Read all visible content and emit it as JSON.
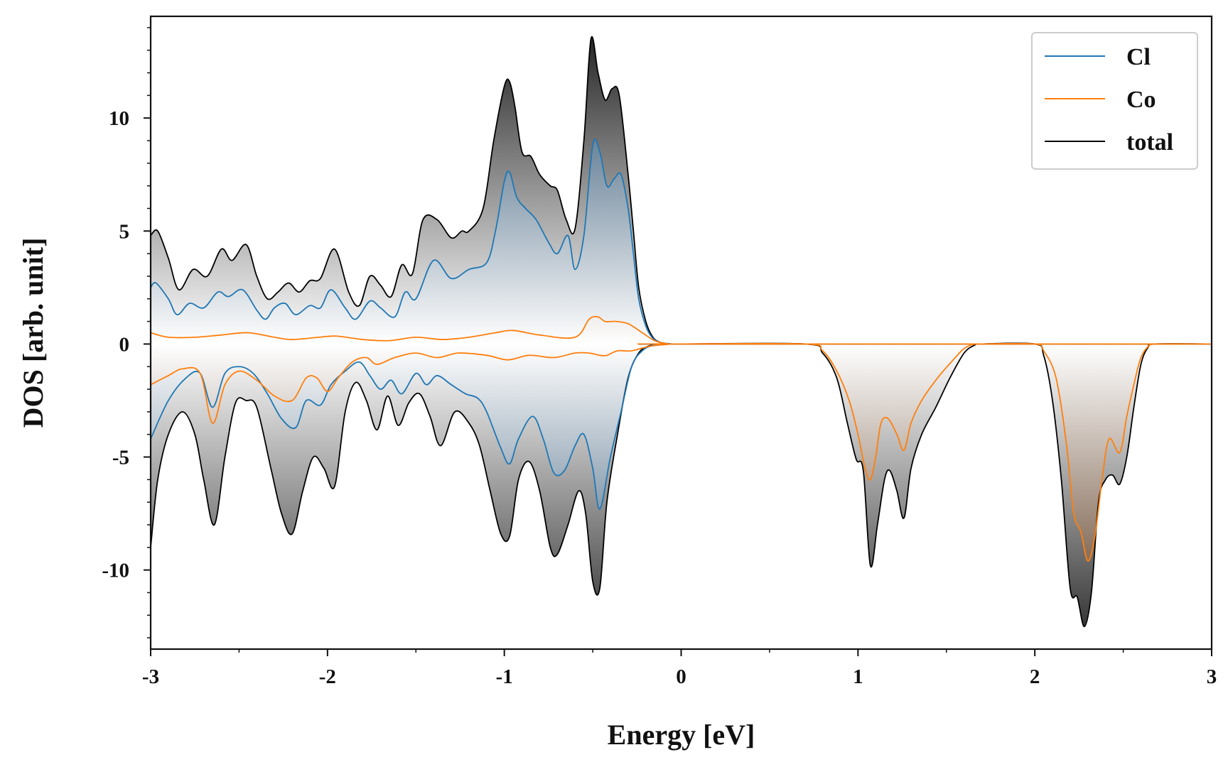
{
  "chart_data": {
    "type": "area",
    "xlabel": "Energy [eV]",
    "ylabel": "DOS [arb. unit]",
    "xlim": [
      -3,
      3
    ],
    "ylim": [
      -13.5,
      14.5
    ],
    "xticks": [
      -3,
      -2,
      -1,
      0,
      1,
      2,
      3
    ],
    "xtick_labels": [
      "-3",
      "-2",
      "-1",
      "0",
      "1",
      "2",
      "3"
    ],
    "yticks": [
      -10,
      -5,
      0,
      5,
      10
    ],
    "ytick_labels": [
      "-10",
      "-5",
      "0",
      "5",
      "10"
    ],
    "grid": false,
    "legend_position": "top-right",
    "colors": {
      "Cl": "#1f77b4",
      "Co": "#ff7f0e",
      "total": "#000000"
    },
    "series": [
      {
        "name": "Cl",
        "component": "spin-up",
        "x": [
          -3.0,
          -2.97,
          -2.9,
          -2.85,
          -2.78,
          -2.7,
          -2.62,
          -2.56,
          -2.48,
          -2.4,
          -2.35,
          -2.3,
          -2.24,
          -2.18,
          -2.1,
          -2.04,
          -1.98,
          -1.9,
          -1.84,
          -1.76,
          -1.7,
          -1.62,
          -1.56,
          -1.5,
          -1.4,
          -1.3,
          -1.2,
          -1.1,
          -1.05,
          -1.0,
          -0.97,
          -0.93,
          -0.88,
          -0.82,
          -0.75,
          -0.7,
          -0.64,
          -0.6,
          -0.55,
          -0.5,
          -0.46,
          -0.42,
          -0.38,
          -0.34,
          -0.3,
          -0.27,
          -0.24,
          -0.2,
          -0.16,
          -0.12,
          -0.08,
          -0.05,
          0.0,
          3.0
        ],
        "y": [
          2.5,
          2.7,
          2.0,
          1.3,
          1.8,
          1.6,
          2.3,
          2.1,
          2.4,
          1.5,
          1.1,
          1.6,
          1.8,
          1.3,
          1.7,
          1.6,
          2.4,
          1.6,
          1.1,
          1.9,
          1.6,
          1.2,
          2.3,
          2.0,
          3.7,
          2.9,
          3.3,
          3.6,
          5.0,
          7.2,
          7.6,
          6.5,
          6.0,
          5.5,
          4.5,
          4.0,
          4.8,
          3.3,
          4.8,
          8.8,
          8.5,
          7.0,
          7.3,
          7.5,
          6.0,
          4.0,
          2.0,
          0.8,
          0.25,
          0.08,
          0.02,
          0.0,
          0.0,
          0.0
        ]
      },
      {
        "name": "Cl",
        "component": "spin-down",
        "x": [
          -3.0,
          -2.9,
          -2.8,
          -2.72,
          -2.65,
          -2.58,
          -2.5,
          -2.42,
          -2.34,
          -2.26,
          -2.18,
          -2.12,
          -2.04,
          -1.98,
          -1.9,
          -1.82,
          -1.76,
          -1.7,
          -1.64,
          -1.58,
          -1.5,
          -1.44,
          -1.38,
          -1.3,
          -1.22,
          -1.15,
          -1.1,
          -1.02,
          -0.97,
          -0.92,
          -0.84,
          -0.78,
          -0.72,
          -0.66,
          -0.6,
          -0.55,
          -0.5,
          -0.46,
          -0.4,
          -0.34,
          -0.28,
          -0.22,
          -0.16,
          -0.1,
          -0.05,
          0.0,
          3.0
        ],
        "y": [
          -4.2,
          -2.5,
          -1.5,
          -1.3,
          -2.8,
          -1.3,
          -1.0,
          -1.3,
          -2.2,
          -3.3,
          -3.7,
          -2.5,
          -2.7,
          -1.8,
          -1.2,
          -0.8,
          -1.4,
          -2.0,
          -1.6,
          -2.2,
          -1.3,
          -1.8,
          -1.4,
          -1.8,
          -2.2,
          -2.4,
          -3.0,
          -4.6,
          -5.3,
          -4.2,
          -3.2,
          -4.2,
          -5.7,
          -5.6,
          -4.5,
          -4.0,
          -5.5,
          -7.3,
          -5.0,
          -3.0,
          -1.0,
          -0.3,
          -0.06,
          -0.01,
          0.0,
          0.0,
          0.0
        ]
      },
      {
        "name": "Co",
        "component": "spin-up",
        "x": [
          -3.0,
          -2.9,
          -2.75,
          -2.6,
          -2.45,
          -2.3,
          -2.2,
          -2.05,
          -1.95,
          -1.8,
          -1.65,
          -1.5,
          -1.35,
          -1.2,
          -1.05,
          -0.95,
          -0.8,
          -0.6,
          -0.52,
          -0.47,
          -0.43,
          -0.37,
          -0.3,
          -0.22,
          -0.15,
          -0.08,
          0.0,
          3.0
        ],
        "y": [
          0.5,
          0.3,
          0.3,
          0.4,
          0.5,
          0.3,
          0.2,
          0.3,
          0.35,
          0.2,
          0.15,
          0.3,
          0.2,
          0.3,
          0.5,
          0.6,
          0.4,
          0.3,
          1.1,
          1.2,
          1.0,
          1.0,
          0.9,
          0.5,
          0.15,
          0.02,
          0.0,
          0.0
        ]
      },
      {
        "name": "Co",
        "component": "spin-down",
        "x": [
          -3.0,
          -2.9,
          -2.82,
          -2.72,
          -2.65,
          -2.58,
          -2.5,
          -2.4,
          -2.3,
          -2.2,
          -2.12,
          -2.06,
          -2.0,
          -1.94,
          -1.86,
          -1.78,
          -1.72,
          -1.62,
          -1.5,
          -1.38,
          -1.26,
          -1.1,
          -0.98,
          -0.86,
          -0.72,
          -0.6,
          -0.52,
          -0.46,
          -0.42,
          -0.36,
          -0.28,
          -0.18,
          -0.08,
          0.0,
          0.7,
          0.8,
          0.88,
          0.95,
          1.0,
          1.04,
          1.07,
          1.1,
          1.13,
          1.17,
          1.22,
          1.26,
          1.3,
          1.36,
          1.45,
          1.55,
          1.6,
          1.65,
          1.7,
          2.0,
          2.05,
          2.12,
          2.18,
          2.22,
          2.26,
          2.3,
          2.34,
          2.38,
          2.42,
          2.48,
          2.52,
          2.56,
          2.6,
          2.65,
          2.7,
          3.0
        ],
        "y": [
          -1.8,
          -1.4,
          -1.1,
          -1.3,
          -3.5,
          -1.8,
          -1.2,
          -1.6,
          -2.3,
          -2.5,
          -1.5,
          -1.5,
          -2.1,
          -1.5,
          -0.8,
          -0.6,
          -0.9,
          -0.6,
          -0.4,
          -0.6,
          -0.4,
          -0.5,
          -0.7,
          -0.5,
          -0.6,
          -0.4,
          -0.4,
          -0.5,
          -0.5,
          -0.3,
          -0.3,
          -0.1,
          -0.02,
          0.0,
          0.0,
          -0.3,
          -1.2,
          -2.5,
          -4.0,
          -5.5,
          -6.0,
          -5.0,
          -3.5,
          -3.3,
          -4.0,
          -4.7,
          -3.5,
          -2.5,
          -1.5,
          -0.6,
          -0.2,
          -0.02,
          0.0,
          0.0,
          -0.3,
          -1.5,
          -4.5,
          -7.5,
          -8.3,
          -9.6,
          -8.5,
          -6.0,
          -4.2,
          -4.8,
          -3.2,
          -1.8,
          -0.6,
          -0.05,
          0.0,
          0.0
        ]
      },
      {
        "name": "total",
        "component": "spin-up",
        "x": [
          -3.0,
          -2.96,
          -2.9,
          -2.84,
          -2.76,
          -2.68,
          -2.6,
          -2.54,
          -2.46,
          -2.4,
          -2.34,
          -2.28,
          -2.22,
          -2.16,
          -2.1,
          -2.04,
          -1.96,
          -1.88,
          -1.82,
          -1.76,
          -1.7,
          -1.64,
          -1.58,
          -1.52,
          -1.46,
          -1.38,
          -1.3,
          -1.24,
          -1.2,
          -1.12,
          -1.06,
          -1.0,
          -0.97,
          -0.94,
          -0.9,
          -0.85,
          -0.8,
          -0.74,
          -0.7,
          -0.65,
          -0.6,
          -0.55,
          -0.51,
          -0.47,
          -0.43,
          -0.39,
          -0.35,
          -0.3,
          -0.27,
          -0.24,
          -0.2,
          -0.16,
          -0.12,
          -0.08,
          -0.05,
          0.0,
          3.0
        ],
        "y": [
          4.8,
          5.0,
          3.8,
          2.4,
          3.3,
          3.0,
          4.2,
          3.7,
          4.4,
          3.0,
          2.0,
          2.3,
          2.7,
          2.3,
          2.8,
          2.9,
          4.2,
          2.3,
          1.7,
          3.0,
          2.6,
          2.1,
          3.5,
          3.1,
          5.5,
          5.5,
          4.7,
          5.0,
          5.0,
          6.0,
          9.0,
          11.4,
          11.6,
          10.5,
          8.5,
          8.3,
          7.5,
          7.0,
          6.8,
          5.5,
          5.1,
          9.0,
          13.5,
          12.0,
          10.8,
          11.3,
          11.0,
          7.5,
          5.0,
          2.5,
          1.0,
          0.3,
          0.08,
          0.02,
          0.0,
          0.0,
          0.0
        ]
      },
      {
        "name": "total",
        "component": "spin-down",
        "x": [
          -3.0,
          -2.96,
          -2.9,
          -2.82,
          -2.75,
          -2.7,
          -2.64,
          -2.58,
          -2.52,
          -2.46,
          -2.4,
          -2.32,
          -2.26,
          -2.2,
          -2.14,
          -2.08,
          -2.02,
          -1.96,
          -1.9,
          -1.84,
          -1.78,
          -1.72,
          -1.66,
          -1.6,
          -1.54,
          -1.48,
          -1.42,
          -1.36,
          -1.28,
          -1.2,
          -1.14,
          -1.08,
          -1.02,
          -0.97,
          -0.92,
          -0.86,
          -0.8,
          -0.74,
          -0.7,
          -0.64,
          -0.58,
          -0.54,
          -0.5,
          -0.46,
          -0.42,
          -0.36,
          -0.3,
          -0.24,
          -0.18,
          -0.12,
          -0.06,
          0.0,
          0.7,
          0.8,
          0.88,
          0.94,
          0.99,
          1.03,
          1.07,
          1.11,
          1.15,
          1.18,
          1.22,
          1.26,
          1.3,
          1.36,
          1.44,
          1.52,
          1.6,
          1.66,
          1.7,
          2.0,
          2.05,
          2.1,
          2.15,
          2.2,
          2.24,
          2.28,
          2.32,
          2.36,
          2.4,
          2.44,
          2.48,
          2.52,
          2.56,
          2.6,
          2.64,
          2.68,
          3.0
        ],
        "y": [
          -9.0,
          -6.0,
          -4.0,
          -3.0,
          -4.0,
          -6.0,
          -8.0,
          -5.0,
          -2.6,
          -2.5,
          -2.8,
          -5.5,
          -7.5,
          -8.4,
          -6.5,
          -5.0,
          -5.5,
          -6.3,
          -3.0,
          -1.7,
          -2.5,
          -3.8,
          -2.3,
          -3.6,
          -2.6,
          -2.2,
          -3.2,
          -4.5,
          -3.0,
          -3.5,
          -4.5,
          -6.5,
          -8.4,
          -8.5,
          -6.0,
          -5.2,
          -6.5,
          -9.0,
          -9.3,
          -8.0,
          -6.5,
          -7.5,
          -10.5,
          -10.8,
          -7.0,
          -4.0,
          -1.5,
          -0.4,
          -0.08,
          -0.02,
          0.0,
          0.0,
          0.0,
          -0.4,
          -1.5,
          -3.5,
          -5.1,
          -5.6,
          -9.8,
          -8.0,
          -6.0,
          -5.6,
          -6.5,
          -7.7,
          -5.5,
          -4.0,
          -2.8,
          -1.5,
          -0.4,
          -0.05,
          0.0,
          0.0,
          -0.5,
          -2.5,
          -6.0,
          -10.8,
          -11.2,
          -12.5,
          -11.0,
          -7.0,
          -6.0,
          -5.8,
          -6.2,
          -5.0,
          -2.8,
          -0.9,
          -0.15,
          0.0,
          0.0
        ]
      }
    ]
  }
}
